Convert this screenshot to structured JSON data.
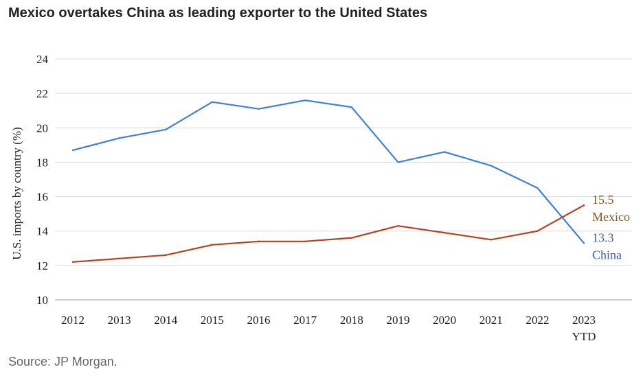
{
  "title": "Mexico overtakes China as leading exporter to the United States",
  "source": "Source: JP Morgan.",
  "chart_data": {
    "type": "line",
    "title": "Mexico overtakes China as leading exporter to the United States",
    "ylabel": "U.S. imports by country (%)",
    "xlabel": "",
    "ylim": [
      10,
      24
    ],
    "yticks": [
      10,
      12,
      14,
      16,
      18,
      20,
      22,
      24
    ],
    "categories": [
      "2012",
      "2013",
      "2014",
      "2015",
      "2016",
      "2017",
      "2018",
      "2019",
      "2020",
      "2021",
      "2022",
      "2023"
    ],
    "category_sublabels": [
      "",
      "",
      "",
      "",
      "",
      "",
      "",
      "",
      "",
      "",
      "",
      "YTD"
    ],
    "grid": true,
    "series": [
      {
        "key": "china",
        "color": "#3f7fdc",
        "label_color": "#3a5fb5",
        "end_value_label": "13.3",
        "end_name_label": "China",
        "values": [
          18.7,
          19.4,
          19.9,
          21.5,
          21.1,
          21.6,
          21.2,
          18.0,
          18.6,
          17.8,
          16.5,
          13.3
        ]
      },
      {
        "key": "mexico",
        "color": "#b8401a",
        "label_color": "#8a5a20",
        "end_value_label": "15.5",
        "end_name_label": "Mexico",
        "values": [
          12.2,
          12.4,
          12.6,
          13.2,
          13.4,
          13.4,
          13.6,
          14.3,
          13.9,
          13.5,
          14.0,
          15.5
        ]
      }
    ]
  }
}
